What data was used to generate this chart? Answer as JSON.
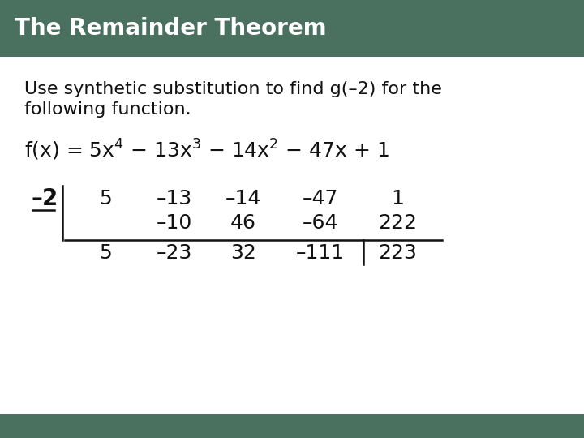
{
  "title": "The Remainder Theorem",
  "title_bg_color": "#4a7060",
  "title_text_color": "#ffffff",
  "body_bg_color": "#ffffff",
  "slide_bg_color": "#e8e8e8",
  "instruction_line1": "Use synthetic substitution to find g(–2) for the",
  "instruction_line2": "following function.",
  "synth_divisor": "–2",
  "row1": [
    "5",
    "–13",
    "–14",
    "–47",
    "1"
  ],
  "row2": [
    "",
    "–10",
    "46",
    "–64",
    "222"
  ],
  "row3": [
    "5",
    "–23",
    "32",
    "–111",
    "223"
  ],
  "font_size_title": 20,
  "font_size_body": 16,
  "font_size_synth": 18,
  "font_size_func": 17
}
